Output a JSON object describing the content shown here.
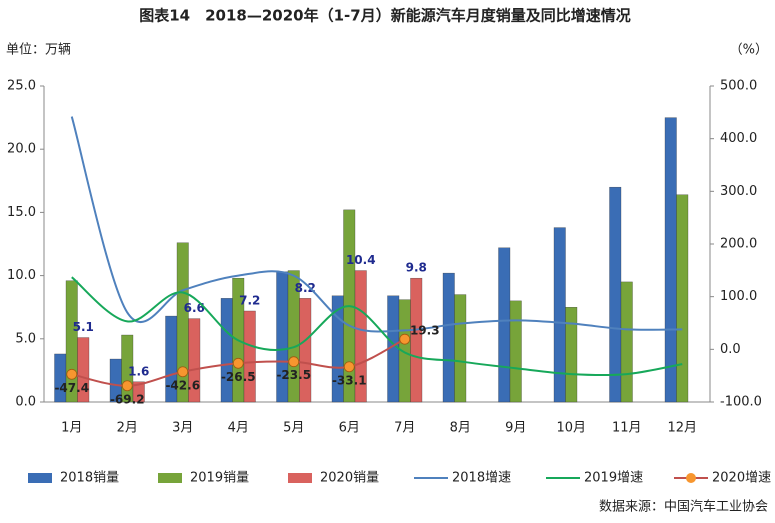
{
  "chart_data": {
    "type": "combo",
    "title": "图表14　2018—2020年（1-7月）新能源汽车月度销量及同比增速情况",
    "y_label": "单位：万辆",
    "y2_label": "（%）",
    "source": "数据来源：中国汽车工业协会",
    "categories": [
      "1月",
      "2月",
      "3月",
      "4月",
      "5月",
      "6月",
      "7月",
      "8月",
      "9月",
      "10月",
      "11月",
      "12月"
    ],
    "ylim": [
      0,
      25
    ],
    "yticks": [
      {
        "value": 0,
        "label": "0.0"
      },
      {
        "value": 5,
        "label": "5.0"
      },
      {
        "value": 10,
        "label": "10.0"
      },
      {
        "value": 15,
        "label": "15.0"
      },
      {
        "value": 20,
        "label": "20.0"
      },
      {
        "value": 25,
        "label": "25.0"
      }
    ],
    "y2lim": [
      -100,
      500
    ],
    "y2ticks": [
      {
        "value": -100,
        "label": "-100.0"
      },
      {
        "value": 0,
        "label": "0.0"
      },
      {
        "value": 100,
        "label": "100.0"
      },
      {
        "value": 200,
        "label": "200.0"
      },
      {
        "value": 300,
        "label": "300.0"
      },
      {
        "value": 400,
        "label": "400.0"
      },
      {
        "value": 500,
        "label": "500.0"
      }
    ],
    "legend": "bottom",
    "series": [
      {
        "name": "2018销量",
        "type": "bar",
        "color": "#3a6db5",
        "values": [
          3.8,
          3.4,
          6.8,
          8.2,
          10.3,
          8.4,
          8.4,
          10.2,
          12.2,
          13.8,
          17.0,
          22.5
        ]
      },
      {
        "name": "2019销量",
        "type": "bar",
        "color": "#77a43a",
        "values": [
          9.6,
          5.3,
          12.6,
          9.8,
          10.4,
          15.2,
          8.1,
          8.5,
          8.0,
          7.5,
          9.5,
          16.4
        ]
      },
      {
        "name": "2020销量",
        "type": "bar",
        "color": "#d9625e",
        "values": [
          5.1,
          1.6,
          6.6,
          7.2,
          8.2,
          10.4,
          9.8,
          null,
          null,
          null,
          null,
          null
        ],
        "labels": true
      },
      {
        "name": "2018增速",
        "type": "line",
        "axis": "y2",
        "color": "#4f81bd",
        "values": [
          442,
          70,
          112,
          140,
          140,
          45,
          36,
          49,
          55,
          49,
          38,
          38
        ]
      },
      {
        "name": "2019增速",
        "type": "line",
        "axis": "y2",
        "color": "#17a85a",
        "values": [
          137,
          53,
          108,
          17,
          4,
          82,
          -6,
          -23,
          -36,
          -47,
          -47,
          -28
        ]
      },
      {
        "name": "2020增速",
        "type": "line",
        "axis": "y2",
        "color": "#c0504d",
        "marker_color": "#f7962f",
        "values": [
          -47.4,
          -69.2,
          -42.6,
          -26.5,
          -23.5,
          -33.1,
          19.3,
          null,
          null,
          null,
          null,
          null
        ],
        "labels": true
      }
    ]
  }
}
